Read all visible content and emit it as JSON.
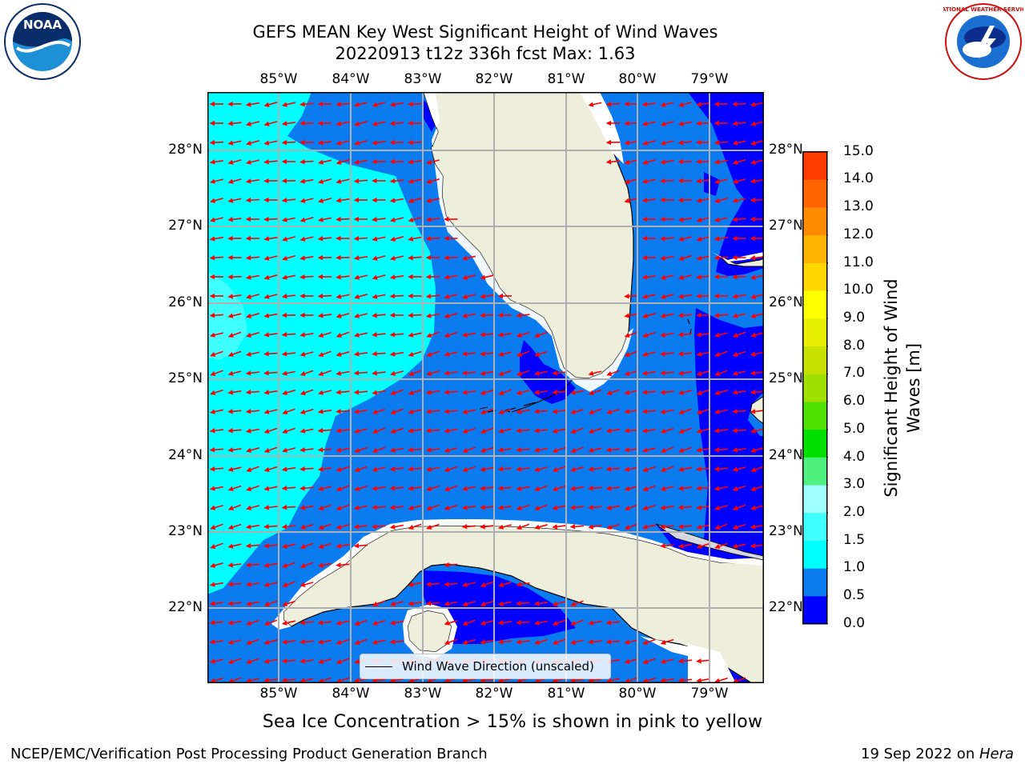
{
  "header": {
    "title_line1": "GEFS MEAN Key West Significant Height of Wind Waves",
    "title_line2": "20220913 t12z 336h fcst   Max: 1.63"
  },
  "logos": {
    "left": {
      "name": "noaa-logo",
      "text": "NOAA"
    },
    "right": {
      "name": "nws-logo",
      "text": "NATIONAL WEATHER SERVICE"
    }
  },
  "map": {
    "lon_labels": [
      "85°W",
      "84°W",
      "83°W",
      "82°W",
      "81°W",
      "80°W",
      "79°W"
    ],
    "lat_labels": [
      "28°N",
      "27°N",
      "26°N",
      "25°N",
      "24°N",
      "23°N",
      "22°N"
    ],
    "legend_label": "Wind Wave Direction (unscaled)",
    "colors": {
      "land": "#eeeedd",
      "band_0_0.5": "#0000ff",
      "band_0.5_1.0": "#0a7cf0",
      "band_1.0_1.5": "#00ffff",
      "band_1.5_2.0": "#40ffff",
      "arrow": "#ff0000",
      "grid": "#b0b0b0"
    },
    "arrow_direction": "toward west-northwest"
  },
  "colorbar": {
    "title_line1": "Significant Height of Wind",
    "title_line2": "Waves [m]",
    "ticks": [
      "15.0",
      "14.0",
      "13.0",
      "12.0",
      "11.0",
      "10.0",
      "9.0",
      "8.0",
      "7.0",
      "6.0",
      "5.0",
      "4.0",
      "3.0",
      "2.0",
      "1.5",
      "1.0",
      "0.5",
      "0.0"
    ],
    "band_colors": [
      "#0000ff",
      "#0a7cf0",
      "#00ffff",
      "#40ffff",
      "#a0ffff",
      "#50f080",
      "#00e000",
      "#50e000",
      "#a0e000",
      "#c8e000",
      "#e6f000",
      "#ffff00",
      "#ffd700",
      "#ffb400",
      "#ff8c00",
      "#ff6400",
      "#ff3c00",
      "#ff0000"
    ]
  },
  "footer": {
    "ice_note": "Sea Ice Concentration > 15% is shown in pink to yellow",
    "left": "NCEP/EMC/Verification Post Processing Product Generation Branch",
    "right_date": "19 Sep 2022 on ",
    "right_host": "Hera"
  }
}
